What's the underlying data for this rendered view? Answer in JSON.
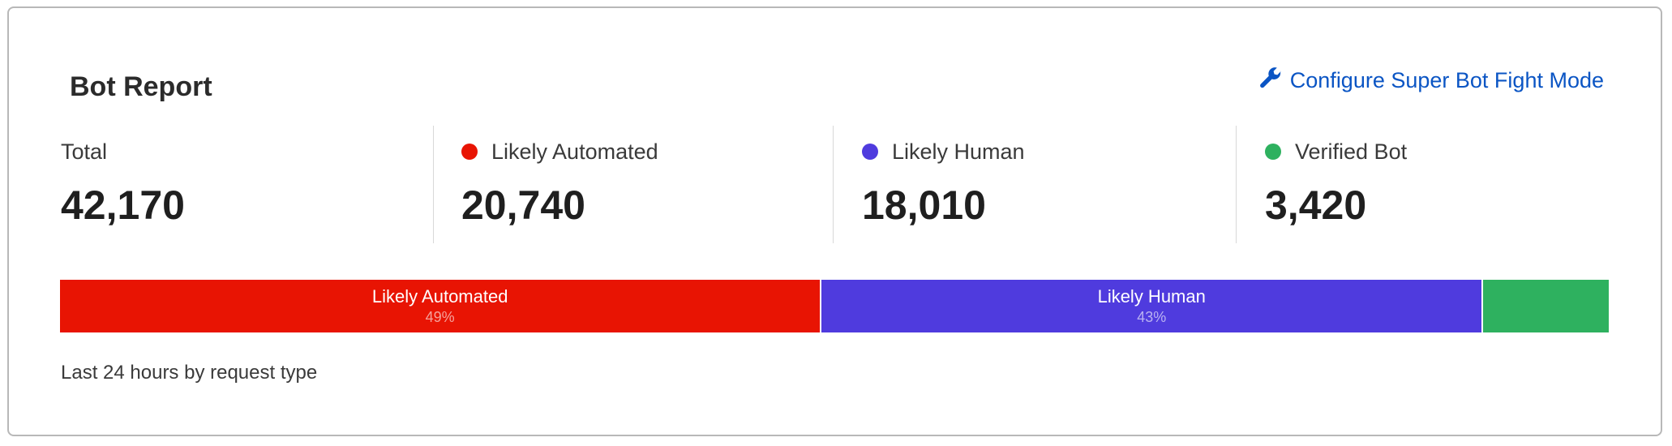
{
  "header": {
    "title": "Bot Report",
    "configure_link": "Configure Super Bot Fight Mode",
    "link_icon": "wrench-icon",
    "link_color": "#0b55c4"
  },
  "stats": [
    {
      "label": "Total",
      "value": "42,170"
    },
    {
      "label": "Likely Automated",
      "value": "20,740",
      "color": "#e81403"
    },
    {
      "label": "Likely Human",
      "value": "18,010",
      "color": "#4f3bde"
    },
    {
      "label": "Verified Bot",
      "value": "3,420",
      "color": "#2eb15f"
    }
  ],
  "chart_data": {
    "type": "bar",
    "orientation": "horizontal-stacked-100%",
    "categories": [
      "Likely Automated",
      "Likely Human",
      "Verified Bot"
    ],
    "values": [
      20740,
      18010,
      3420
    ],
    "labels": [
      {
        "name": "Likely Automated",
        "percent": "49%"
      },
      {
        "name": "Likely Human",
        "percent": "43%"
      },
      {
        "name": "",
        "percent": ""
      }
    ],
    "colors": [
      "#e81403",
      "#4f3bde",
      "#2eb15f"
    ]
  },
  "footer": {
    "caption": "Last 24 hours by request type"
  }
}
